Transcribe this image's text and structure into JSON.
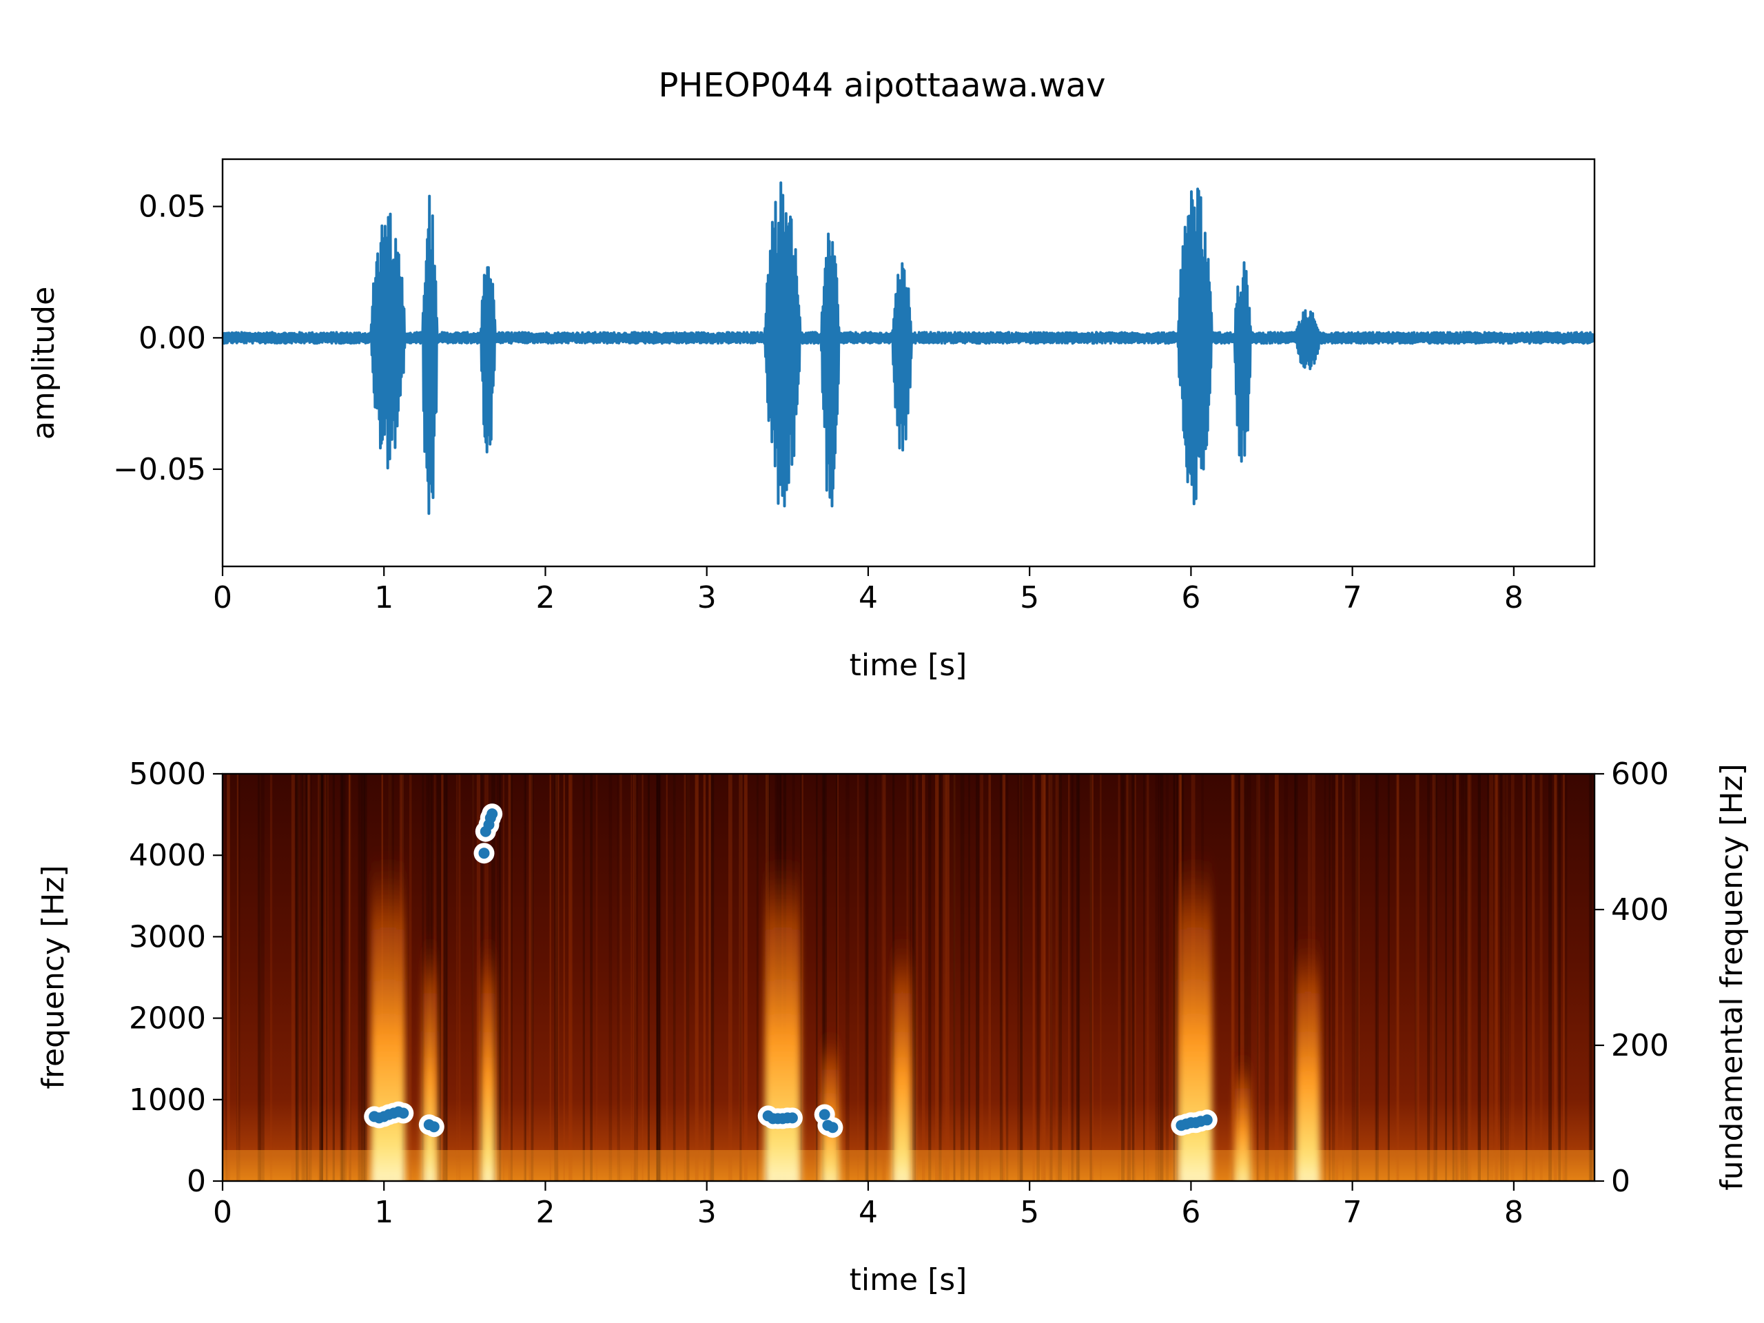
{
  "title": "PHEOP044 aipottaawa.wav",
  "chart_data": [
    {
      "type": "line",
      "name": "waveform",
      "xlabel": "time [s]",
      "ylabel": "amplitude",
      "xlim": [
        0,
        8.5
      ],
      "ylim": [
        -0.087,
        0.068
      ],
      "xticks": [
        0,
        1,
        2,
        3,
        4,
        5,
        6,
        7,
        8
      ],
      "xtick_labels": [
        "0",
        "1",
        "2",
        "3",
        "4",
        "5",
        "6",
        "7",
        "8"
      ],
      "yticks": [
        0.05,
        0.0,
        -0.05
      ],
      "ytick_labels": [
        "0.05",
        "0.00",
        "−0.05"
      ],
      "color": "#1f77b4",
      "noise_floor": 0.0015,
      "bursts": [
        {
          "t0": 0.92,
          "t1": 1.13,
          "pos": 0.051,
          "neg": -0.05
        },
        {
          "t0": 1.24,
          "t1": 1.33,
          "pos": 0.056,
          "neg": -0.08
        },
        {
          "t0": 1.6,
          "t1": 1.69,
          "pos": 0.031,
          "neg": -0.045
        },
        {
          "t0": 3.36,
          "t1": 3.58,
          "pos": 0.061,
          "neg": -0.067
        },
        {
          "t0": 3.71,
          "t1": 3.82,
          "pos": 0.042,
          "neg": -0.066
        },
        {
          "t0": 4.15,
          "t1": 4.27,
          "pos": 0.03,
          "neg": -0.047
        },
        {
          "t0": 5.92,
          "t1": 6.13,
          "pos": 0.059,
          "neg": -0.064
        },
        {
          "t0": 6.27,
          "t1": 6.37,
          "pos": 0.03,
          "neg": -0.056
        },
        {
          "t0": 6.65,
          "t1": 6.8,
          "pos": 0.011,
          "neg": -0.013
        }
      ]
    },
    {
      "type": "heatmap",
      "name": "spectrogram",
      "xlabel": "time [s]",
      "ylabel": "frequency [Hz]",
      "y2label": "fundamental frequency [Hz]",
      "xlim": [
        0,
        8.5
      ],
      "ylim": [
        0,
        5000
      ],
      "y2lim": [
        0,
        600
      ],
      "xticks": [
        0,
        1,
        2,
        3,
        4,
        5,
        6,
        7,
        8
      ],
      "xtick_labels": [
        "0",
        "1",
        "2",
        "3",
        "4",
        "5",
        "6",
        "7",
        "8"
      ],
      "yticks": [
        0,
        1000,
        2000,
        3000,
        4000,
        5000
      ],
      "ytick_labels": [
        "0",
        "1000",
        "2000",
        "3000",
        "4000",
        "5000"
      ],
      "y2ticks": [
        0,
        200,
        400,
        600
      ],
      "y2tick_labels": [
        "0",
        "200",
        "400",
        "600"
      ],
      "colormap": "afmhot",
      "f0_color": "#1f77b4",
      "f0_series": {
        "name": "fundamental frequency",
        "t": [
          0.94,
          0.97,
          1.0,
          1.03,
          1.06,
          1.09,
          1.12,
          1.28,
          1.31,
          1.62,
          1.63,
          1.65,
          1.66,
          1.67,
          3.38,
          3.41,
          3.44,
          3.47,
          3.5,
          3.53,
          3.73,
          3.75,
          3.78,
          5.94,
          5.97,
          6.0,
          6.03,
          6.06,
          6.1
        ],
        "f0": [
          95,
          93,
          95,
          98,
          100,
          102,
          100,
          83,
          80,
          483,
          515,
          525,
          535,
          541,
          96,
          92,
          92,
          92,
          93,
          93,
          98,
          82,
          79,
          82,
          84,
          86,
          86,
          88,
          90
        ]
      },
      "energy_bands": [
        {
          "t0": 0.92,
          "t1": 1.13,
          "fmax": 4000
        },
        {
          "t0": 1.24,
          "t1": 1.33,
          "fmax": 3000
        },
        {
          "t0": 1.6,
          "t1": 1.69,
          "fmax": 3000
        },
        {
          "t0": 3.36,
          "t1": 3.58,
          "fmax": 4000
        },
        {
          "t0": 3.71,
          "t1": 3.82,
          "fmax": 1800
        },
        {
          "t0": 4.15,
          "t1": 4.27,
          "fmax": 3000
        },
        {
          "t0": 5.92,
          "t1": 6.13,
          "fmax": 4000
        },
        {
          "t0": 6.27,
          "t1": 6.37,
          "fmax": 1500
        },
        {
          "t0": 6.65,
          "t1": 6.8,
          "fmax": 3000
        }
      ]
    }
  ]
}
